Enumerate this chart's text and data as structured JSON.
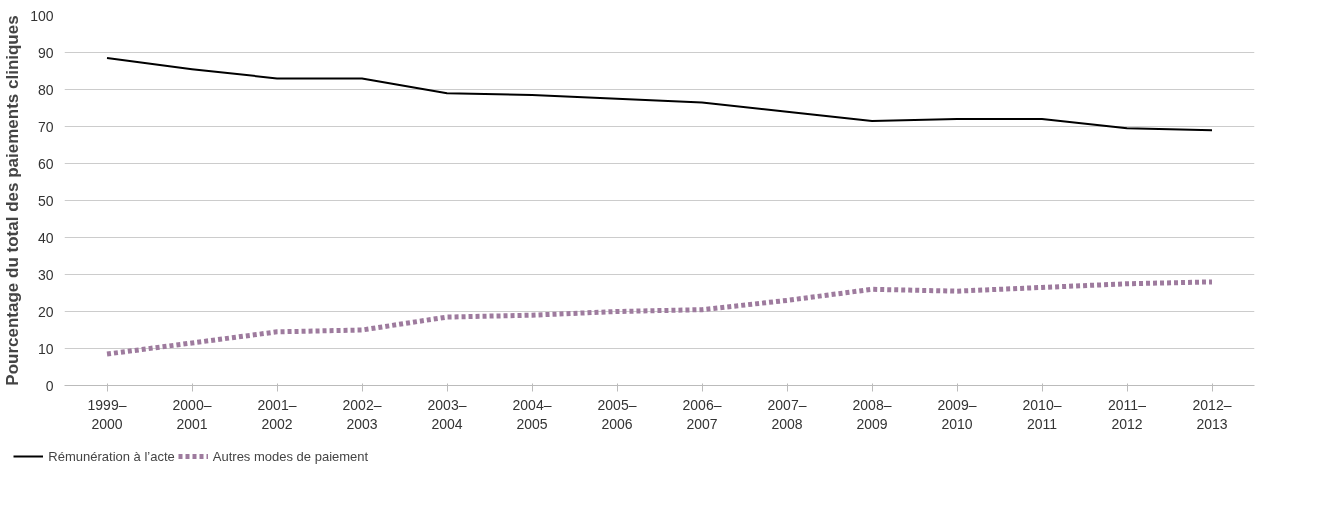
{
  "chart_data": {
    "type": "line",
    "ylabel": "Pourcentage du total des paiements cliniques",
    "categories": [
      "1999–\n2000",
      "2000–\n2001",
      "2001–\n2002",
      "2002–\n2003",
      "2003–\n2004",
      "2004–\n2005",
      "2005–\n2006",
      "2006–\n2007",
      "2007–\n2008",
      "2008–\n2009",
      "2009–\n2010",
      "2010–\n2011",
      "2011–\n2012",
      "2012–\n2013"
    ],
    "series": [
      {
        "name": "Rémunération à l’acte",
        "color": "#000000",
        "line_style": "solid",
        "values": [
          88.5,
          85.5,
          83,
          83,
          79,
          78.5,
          77.5,
          76.5,
          74,
          71.5,
          72,
          72,
          69.5,
          69
        ]
      },
      {
        "name": "Autres modes de paiement",
        "color": "#9e7b9e",
        "line_style": "dashed",
        "values": [
          8.5,
          11.5,
          14.5,
          15,
          18.5,
          19,
          20,
          20.5,
          23,
          26,
          25.5,
          26.5,
          27.5,
          28
        ]
      }
    ],
    "ylim": [
      0,
      100
    ],
    "yticks": [
      0,
      10,
      20,
      30,
      40,
      50,
      60,
      70,
      80,
      90,
      100
    ],
    "grid": "y",
    "legend": "bottom left"
  }
}
